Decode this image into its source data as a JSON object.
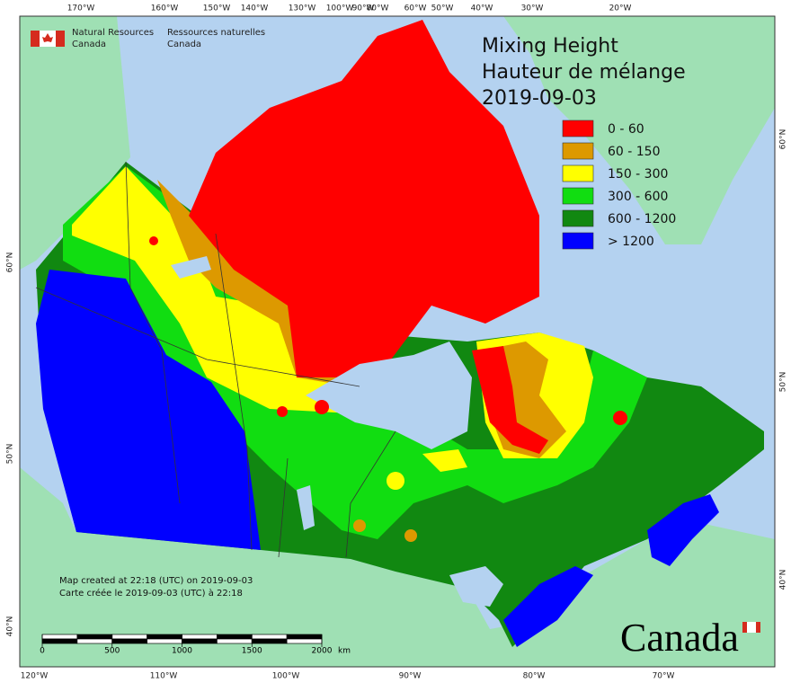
{
  "header": {
    "agency_en": [
      "Natural Resources",
      "Canada"
    ],
    "agency_fr": [
      "Ressources naturelles",
      "Canada"
    ]
  },
  "title": [
    "Mixing Height",
    "Hauteur de mélange",
    "2019-09-03"
  ],
  "legend": [
    {
      "label": "0 - 60",
      "color": "#ff0000"
    },
    {
      "label": "60 - 150",
      "color": "#dd9900"
    },
    {
      "label": "150 - 300",
      "color": "#ffff00"
    },
    {
      "label": "300 - 600",
      "color": "#11dd11"
    },
    {
      "label": "600 - 1200",
      "color": "#118811"
    },
    {
      "label": "> 1200",
      "color": "#0000ff"
    }
  ],
  "top_longitudes": [
    "170°W",
    "160°W",
    "150°W",
    "140°W",
    "130°W",
    "100°W",
    "90°W",
    "80°W",
    "60°W",
    "50°W",
    "40°W",
    "30°W",
    "20°W"
  ],
  "bottom_longitudes": [
    "120°W",
    "110°W",
    "100°W",
    "90°W",
    "80°W",
    "70°W"
  ],
  "left_latitudes": [
    "60°N",
    "50°N",
    "40°N"
  ],
  "right_latitudes": [
    "60°N",
    "50°N",
    "40°N"
  ],
  "scale_bar": {
    "ticks": [
      0,
      500,
      1000,
      1500,
      2000
    ],
    "unit": "km"
  },
  "notes": [
    "Map created at 22:18 (UTC) on 2019-09-03",
    "Carte créée le 2019-09-03 (UTC) à 22:18"
  ],
  "wordmark": "Canada"
}
